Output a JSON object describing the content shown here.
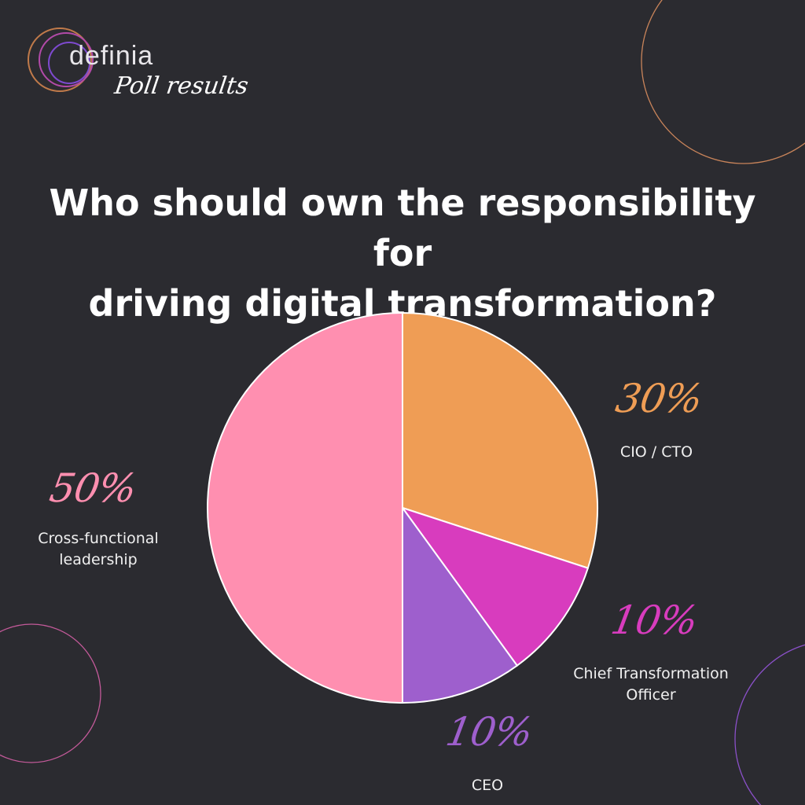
{
  "brand": {
    "name": "definia",
    "subtitle": "Poll results"
  },
  "headline": {
    "line1": "Who should own the responsibility for",
    "line2": "driving digital transformation?"
  },
  "colors": {
    "background": "#2b2b30",
    "cio_cto": "#ef9d55",
    "chief_transformation_officer": "#d83cbe",
    "ceo": "#9e5fcd",
    "cross_functional": "#ff8fb0"
  },
  "chart_data": {
    "type": "pie",
    "slices": [
      {
        "key": "cio",
        "label": "CIO / CTO",
        "value": 30,
        "display": "30%",
        "color": "#ef9d55"
      },
      {
        "key": "cto_chief",
        "label": "Chief Transformation Officer",
        "label_lines": [
          "Chief Transformation",
          "Officer"
        ],
        "value": 10,
        "display": "10%",
        "color": "#d83cbe"
      },
      {
        "key": "ceo",
        "label": "CEO",
        "value": 10,
        "display": "10%",
        "color": "#9e5fcd"
      },
      {
        "key": "cross",
        "label": "Cross-functional leadership",
        "label_lines": [
          "Cross-functional",
          "leadership"
        ],
        "value": 50,
        "display": "50%",
        "color": "#ff8fb0"
      }
    ]
  }
}
